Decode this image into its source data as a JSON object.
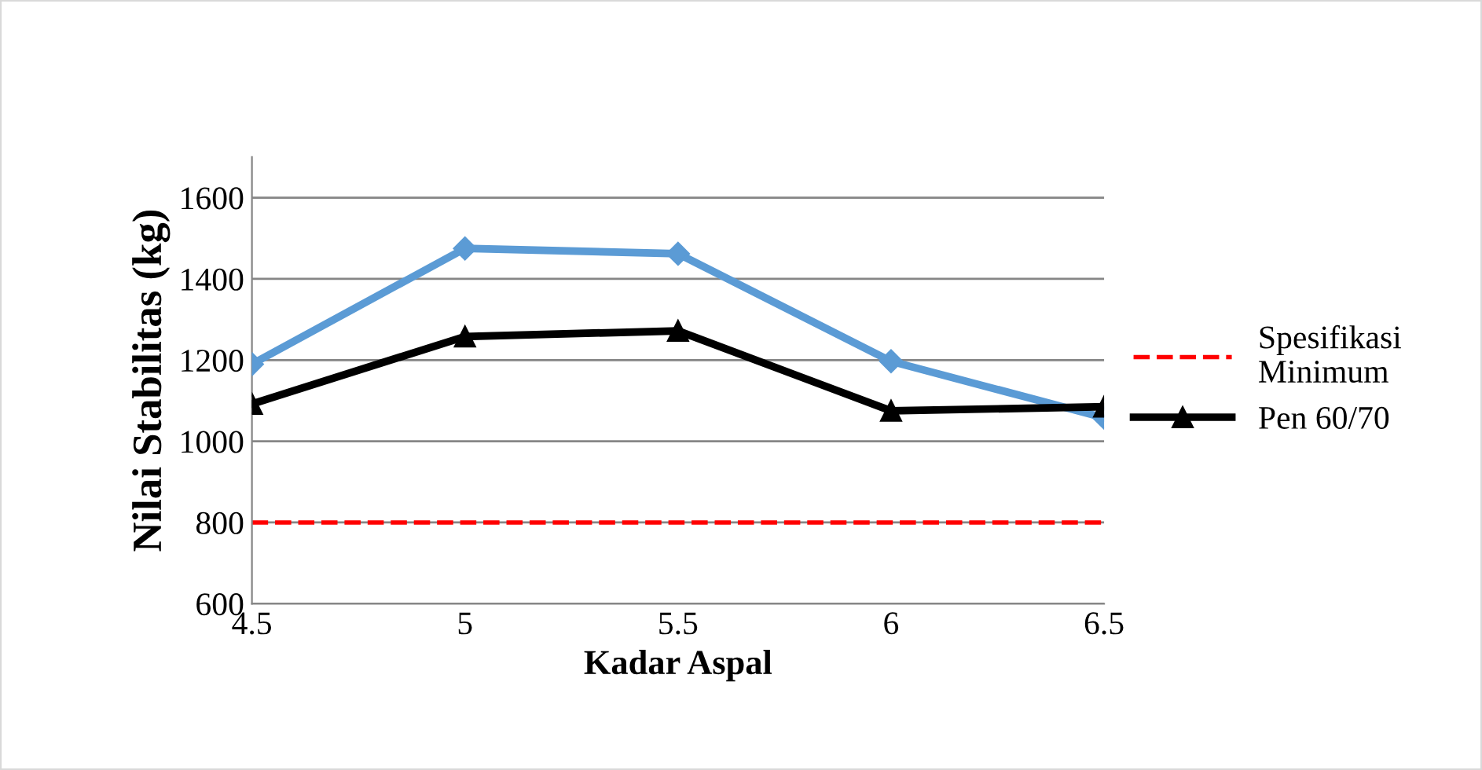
{
  "chart_data": {
    "type": "line",
    "xlabel": "Kadar Aspal",
    "ylabel": "Nilai Stabilitas (kg)",
    "x": [
      4.5,
      5,
      5.5,
      6,
      6.5
    ],
    "series": [
      {
        "color": "#5b9bd5",
        "marker": "diamond",
        "values": [
          1190,
          1475,
          1462,
          1197,
          1058
        ]
      },
      {
        "name": "Pen 60/70",
        "color": "#000000",
        "marker": "triangle",
        "values": [
          1092,
          1258,
          1272,
          1075,
          1085
        ]
      }
    ],
    "ref_lines": [
      {
        "axis": "y",
        "value": 800,
        "label": "Spesifikasi\nMinimum",
        "color": "#ff0000",
        "line_style": "dashed"
      }
    ],
    "xlim": [
      4.5,
      6.5
    ],
    "xticks": [
      4.5,
      5,
      5.5,
      6,
      6.5
    ],
    "ylim": [
      600,
      1700
    ],
    "yticks": [
      600,
      800,
      1000,
      1200,
      1400,
      1600
    ],
    "grid": "y",
    "legend": "right"
  }
}
